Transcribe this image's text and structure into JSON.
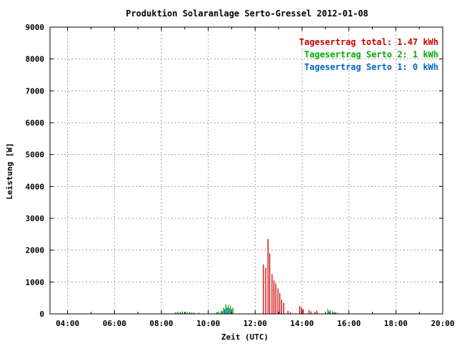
{
  "chart_data": {
    "type": "bar",
    "title": "Produktion Solaranlage Serto-Gressel 2012-01-08",
    "xlabel": "Zeit (UTC)",
    "ylabel": "Leistung [W]",
    "x_unit": "hours (UTC)",
    "xlim": [
      3.25,
      20.0
    ],
    "ylim": [
      0,
      9000
    ],
    "x_ticks": [
      {
        "value": 4,
        "label": "04:00"
      },
      {
        "value": 6,
        "label": "06:00"
      },
      {
        "value": 8,
        "label": "08:00"
      },
      {
        "value": 10,
        "label": "10:00"
      },
      {
        "value": 12,
        "label": "12:00"
      },
      {
        "value": 14,
        "label": "14:00"
      },
      {
        "value": 16,
        "label": "16:00"
      },
      {
        "value": 18,
        "label": "18:00"
      },
      {
        "value": 20,
        "label": "20:00"
      }
    ],
    "y_ticks": [
      {
        "value": 0,
        "label": "0"
      },
      {
        "value": 1000,
        "label": "1000"
      },
      {
        "value": 2000,
        "label": "2000"
      },
      {
        "value": 3000,
        "label": "3000"
      },
      {
        "value": 4000,
        "label": "4000"
      },
      {
        "value": 5000,
        "label": "5000"
      },
      {
        "value": 6000,
        "label": "6000"
      },
      {
        "value": 7000,
        "label": "7000"
      },
      {
        "value": 8000,
        "label": "8000"
      },
      {
        "value": 9000,
        "label": "9000"
      }
    ],
    "grid": true,
    "legend_position": "top-right",
    "legend": [
      {
        "text": "Tagesertrag total: 1.47 kWh",
        "color": "#cc0000"
      },
      {
        "text": "Tagesertrag Serto 2: 1 kWh",
        "color": "#00aa00"
      },
      {
        "text": "Tagesertrag Serto 1: 0 kWh",
        "color": "#0066cc"
      }
    ],
    "series": [
      {
        "color": "#cc0000",
        "points": [
          [
            12.35,
            1550
          ],
          [
            12.45,
            1450
          ],
          [
            12.55,
            2350
          ],
          [
            12.62,
            1900
          ],
          [
            12.72,
            1250
          ],
          [
            12.8,
            1050
          ],
          [
            12.88,
            950
          ],
          [
            12.97,
            800
          ],
          [
            13.05,
            650
          ],
          [
            13.13,
            450
          ],
          [
            13.22,
            350
          ],
          [
            13.4,
            100
          ],
          [
            13.5,
            50
          ],
          [
            13.9,
            250
          ],
          [
            13.98,
            200
          ],
          [
            14.05,
            150
          ],
          [
            14.3,
            120
          ],
          [
            14.38,
            80
          ],
          [
            14.55,
            70
          ],
          [
            14.63,
            100
          ],
          [
            15.2,
            60
          ],
          [
            15.4,
            50
          ],
          [
            15.55,
            30
          ]
        ]
      },
      {
        "color": "#00aa00",
        "points": [
          [
            8.6,
            50
          ],
          [
            8.7,
            70
          ],
          [
            8.8,
            60
          ],
          [
            8.9,
            80
          ],
          [
            9.0,
            70
          ],
          [
            9.1,
            60
          ],
          [
            9.2,
            60
          ],
          [
            9.3,
            50
          ],
          [
            9.4,
            40
          ],
          [
            9.6,
            40
          ],
          [
            10.35,
            60
          ],
          [
            10.45,
            70
          ],
          [
            10.55,
            100
          ],
          [
            10.65,
            200
          ],
          [
            10.75,
            300
          ],
          [
            10.85,
            280
          ],
          [
            10.95,
            250
          ],
          [
            11.05,
            200
          ],
          [
            15.1,
            150
          ],
          [
            15.2,
            120
          ],
          [
            15.3,
            80
          ],
          [
            15.45,
            50
          ]
        ]
      },
      {
        "color": "#0066cc",
        "points": [
          [
            8.63,
            30
          ],
          [
            8.83,
            40
          ],
          [
            9.03,
            40
          ],
          [
            9.23,
            30
          ],
          [
            10.4,
            40
          ],
          [
            10.6,
            80
          ],
          [
            10.7,
            150
          ],
          [
            10.8,
            200
          ],
          [
            10.9,
            180
          ],
          [
            11.0,
            150
          ],
          [
            15.15,
            80
          ],
          [
            15.35,
            40
          ]
        ]
      }
    ]
  }
}
